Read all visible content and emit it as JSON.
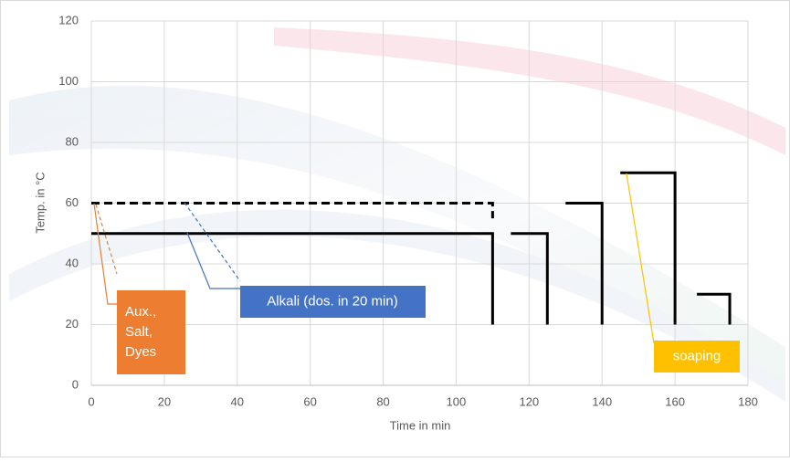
{
  "chart_data": {
    "type": "line",
    "x_label": "Time in min",
    "y_label": "Temp. in °C",
    "xlim": [
      0,
      180
    ],
    "xticks": [
      0,
      20,
      40,
      60,
      80,
      100,
      120,
      140,
      160,
      180
    ],
    "ylim": [
      0,
      120
    ],
    "yticks": [
      0,
      20,
      40,
      60,
      80,
      100,
      120
    ],
    "grid": true,
    "series": [
      {
        "color": "#000000",
        "dashed": false,
        "x": [
          0,
          110,
          110,
          null,
          115,
          125,
          125,
          null,
          130,
          140,
          140,
          null,
          145,
          160,
          160,
          null,
          166,
          175,
          175
        ],
        "values": [
          50,
          50,
          20,
          null,
          50,
          50,
          20,
          null,
          60,
          60,
          20,
          null,
          70,
          70,
          20,
          null,
          30,
          30,
          20
        ]
      },
      {
        "color": "#000000",
        "dashed": true,
        "x": [
          0,
          110,
          110
        ],
        "values": [
          60,
          60,
          55
        ]
      }
    ],
    "annotations": [
      {
        "lines": [
          "Aux.,",
          "Salt,",
          "Dyes"
        ],
        "color": "#ed7d31"
      },
      {
        "lines": [
          "Alkali (dos. in 20 min)"
        ],
        "color": "#4472c4"
      },
      {
        "lines": [
          "soaping"
        ],
        "color": "#ffc000"
      }
    ]
  }
}
